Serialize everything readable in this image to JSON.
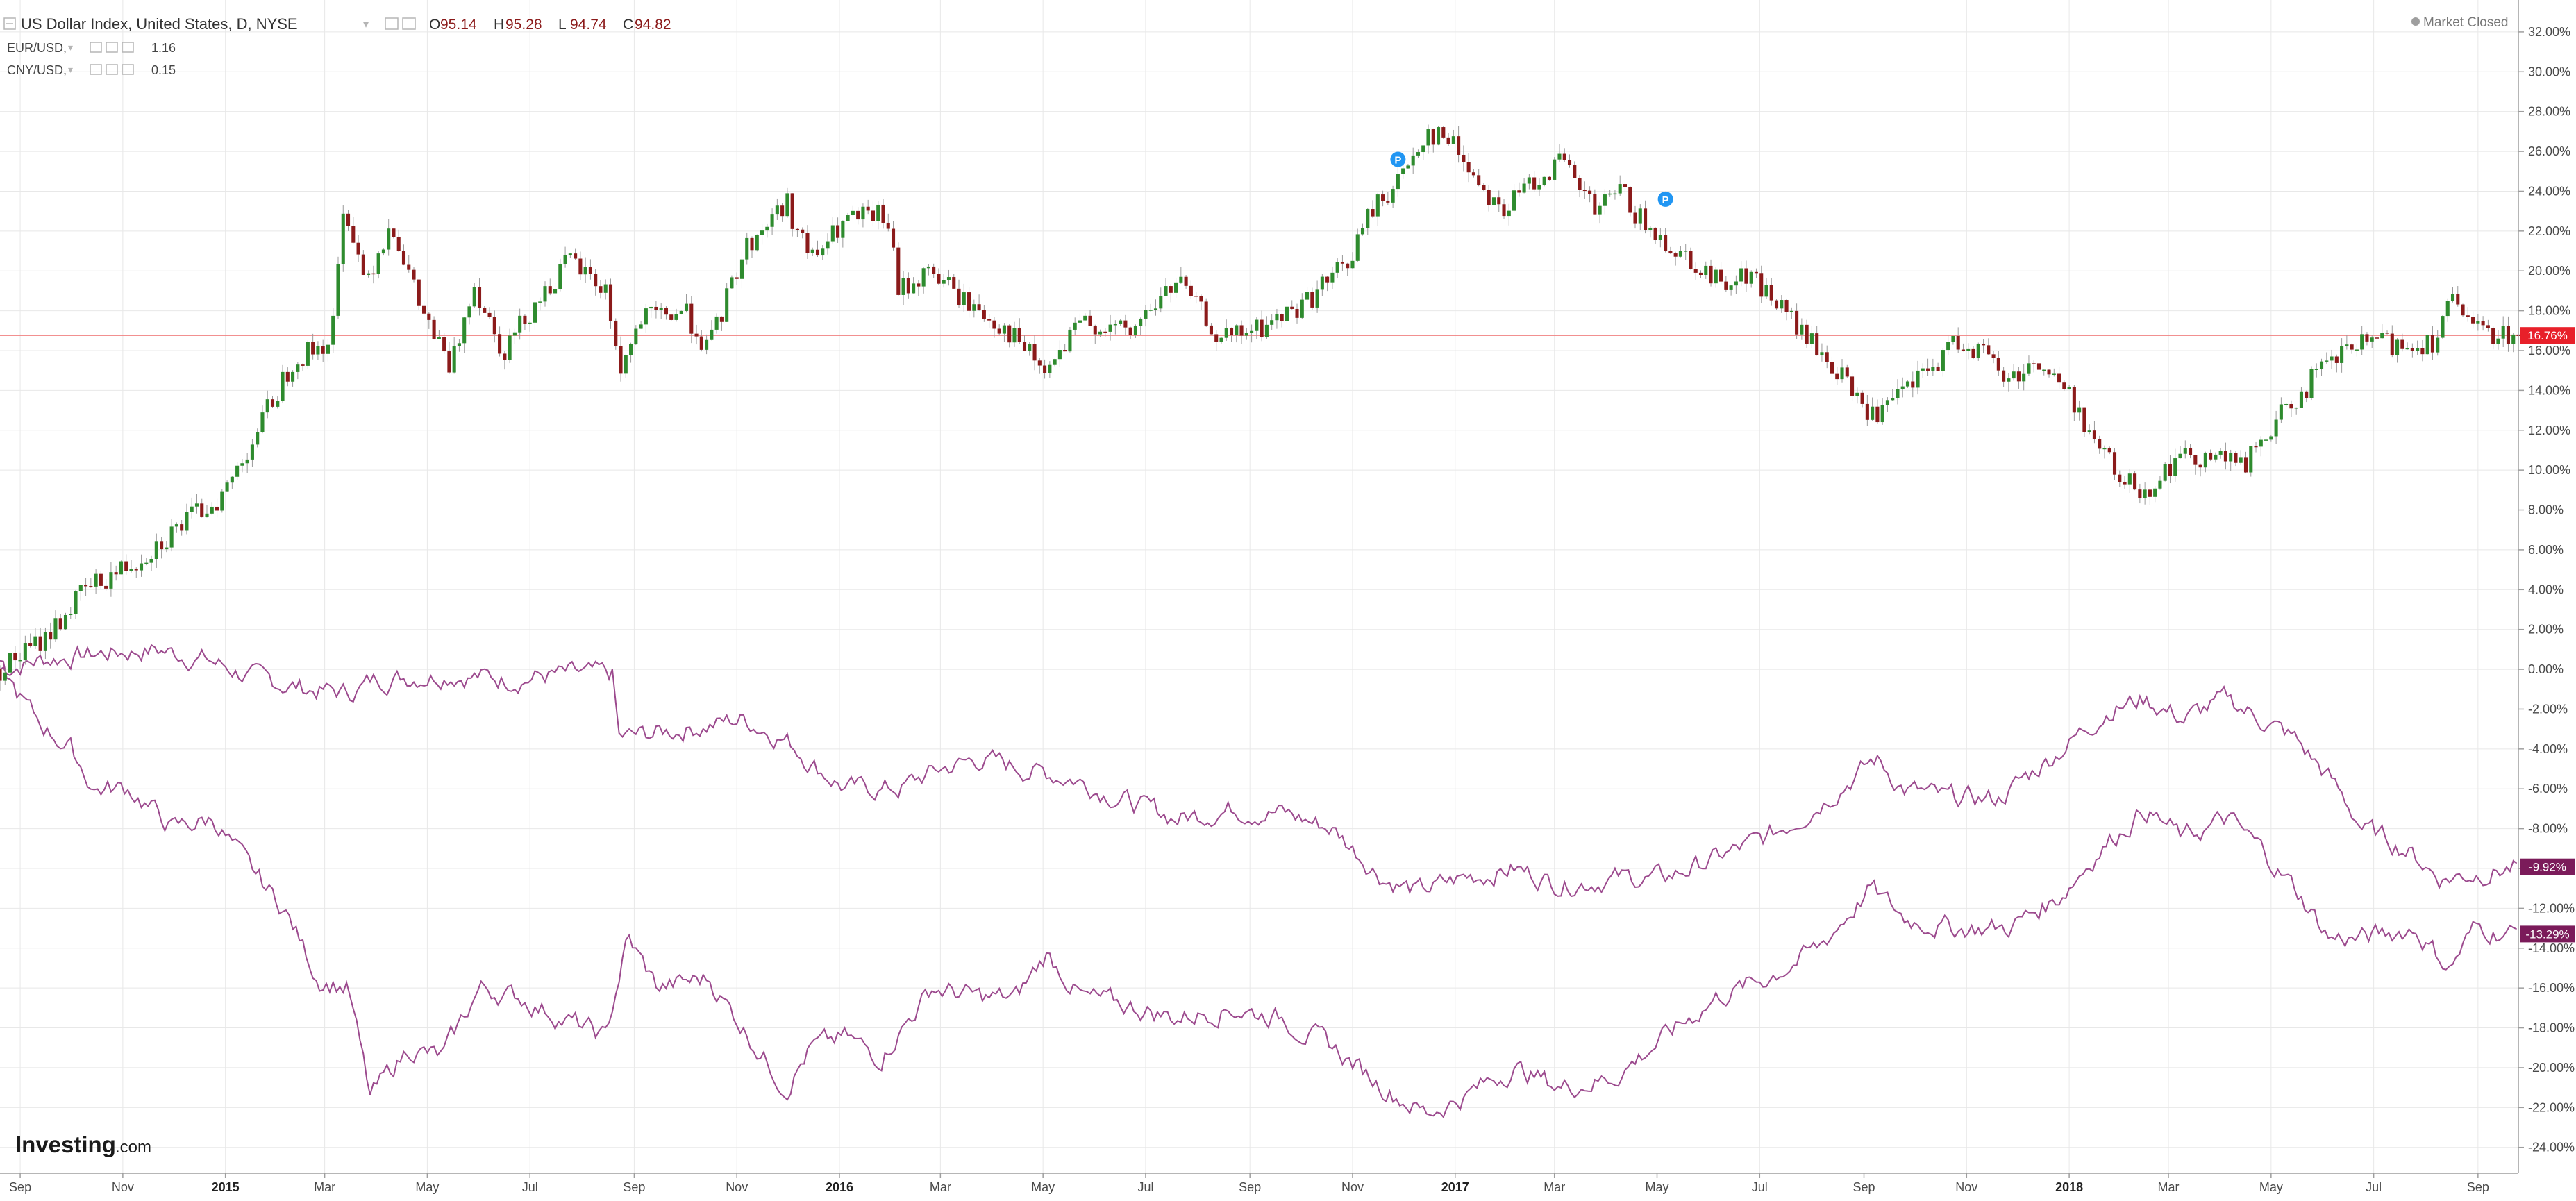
{
  "header": {
    "main_symbol": "US Dollar Index, United States, D, NYSE",
    "ohlc": [
      {
        "label": "O",
        "value": "95.14"
      },
      {
        "label": "H",
        "value": "95.28"
      },
      {
        "label": "L",
        "value": "94.74"
      },
      {
        "label": "C",
        "value": "94.82"
      }
    ],
    "compare": [
      {
        "symbol": "EUR/USD,",
        "value": "1.16"
      },
      {
        "symbol": "CNY/USD,",
        "value": "0.15"
      }
    ],
    "market_status": "Market Closed"
  },
  "branding": {
    "logo_bold": "Investing",
    "logo_suffix": ".com"
  },
  "colors": {
    "up_candle": "#2e8b2e",
    "down_candle": "#8b1a1a",
    "compare_line": "#9c4a8e",
    "price_line": "#f08080",
    "label_red": "#e8202a",
    "label_purple": "#7b1b5a",
    "grid": "#e8e8e8",
    "pin_blue": "#2196f3",
    "status_dot": "#9e9e9e"
  },
  "chart_data": {
    "type": "line",
    "percent_axis": {
      "ticks": [
        "32.00%",
        "30.00%",
        "28.00%",
        "26.00%",
        "24.00%",
        "22.00%",
        "20.00%",
        "18.00%",
        "16.00%",
        "14.00%",
        "12.00%",
        "10.00%",
        "8.00%",
        "6.00%",
        "4.00%",
        "2.00%",
        "0.00%",
        "-2.00%",
        "-4.00%",
        "-6.00%",
        "-8.00%",
        "-10.00%",
        "-12.00%",
        "-14.00%",
        "-16.00%",
        "-18.00%",
        "-20.00%",
        "-22.00%",
        "-24.00%"
      ],
      "range": [
        -25.3,
        33.6
      ]
    },
    "time_axis": {
      "labels": [
        "Sep",
        "Nov",
        "2015",
        "Mar",
        "May",
        "Jul",
        "Sep",
        "Nov",
        "2016",
        "Mar",
        "May",
        "Jul",
        "Sep",
        "Nov",
        "2017",
        "Mar",
        "May",
        "Jul",
        "Sep",
        "Nov",
        "2018",
        "Mar",
        "May",
        "Jul",
        "Sep"
      ],
      "bold_labels": [
        "2015",
        "2016",
        "2017",
        "2018"
      ],
      "range": [
        "2014-08-20",
        "2018-09-25"
      ]
    },
    "series": [
      {
        "key": "usd_index",
        "kind": "candlestick",
        "last_label": "16.76%",
        "last_value": 16.76,
        "points": [
          [
            "2014-08-20",
            0
          ],
          [
            "2014-09-15",
            1.5
          ],
          [
            "2014-10-10",
            4
          ],
          [
            "2014-11-10",
            5.5
          ],
          [
            "2014-12-05",
            7.2
          ],
          [
            "2014-12-31",
            8.8
          ],
          [
            "2015-01-20",
            12
          ],
          [
            "2015-02-10",
            15.5
          ],
          [
            "2015-03-05",
            16.5
          ],
          [
            "2015-03-13",
            23.5
          ],
          [
            "2015-03-25",
            19.5
          ],
          [
            "2015-04-10",
            22.5
          ],
          [
            "2015-04-25",
            18.5
          ],
          [
            "2015-05-15",
            15
          ],
          [
            "2015-05-28",
            19.5
          ],
          [
            "2015-06-15",
            16
          ],
          [
            "2015-07-05",
            18.5
          ],
          [
            "2015-07-25",
            20.5
          ],
          [
            "2015-08-15",
            19
          ],
          [
            "2015-08-24",
            15
          ],
          [
            "2015-09-05",
            17.5
          ],
          [
            "2015-10-01",
            18
          ],
          [
            "2015-10-15",
            16
          ],
          [
            "2015-11-05",
            21
          ],
          [
            "2015-11-30",
            23.5
          ],
          [
            "2015-12-15",
            20.5
          ],
          [
            "2016-01-05",
            22.5
          ],
          [
            "2016-01-29",
            22.8
          ],
          [
            "2016-02-05",
            19
          ],
          [
            "2016-02-25",
            20
          ],
          [
            "2016-03-15",
            18.5
          ],
          [
            "2016-04-10",
            17
          ],
          [
            "2016-05-03",
            14.8
          ],
          [
            "2016-05-25",
            17.5
          ],
          [
            "2016-06-23",
            16.8
          ],
          [
            "2016-06-27",
            17.5
          ],
          [
            "2016-07-20",
            19.5
          ],
          [
            "2016-08-15",
            16.5
          ],
          [
            "2016-09-10",
            17.2
          ],
          [
            "2016-10-05",
            18.5
          ],
          [
            "2016-10-30",
            20.5
          ],
          [
            "2016-11-12",
            23
          ],
          [
            "2016-11-28",
            24.5
          ],
          [
            "2016-12-15",
            27
          ],
          [
            "2016-12-30",
            26.5
          ],
          [
            "2017-01-15",
            24.5
          ],
          [
            "2017-01-30",
            23
          ],
          [
            "2017-02-15",
            24.5
          ],
          [
            "2017-03-05",
            25.5
          ],
          [
            "2017-03-25",
            23
          ],
          [
            "2017-04-10",
            24
          ],
          [
            "2017-04-25",
            22
          ],
          [
            "2017-05-15",
            21
          ],
          [
            "2017-06-05",
            19.5
          ],
          [
            "2017-06-25",
            19.8
          ],
          [
            "2017-07-10",
            18.5
          ],
          [
            "2017-07-30",
            16.5
          ],
          [
            "2017-08-15",
            15
          ],
          [
            "2017-09-08",
            12.5
          ],
          [
            "2017-09-25",
            14
          ],
          [
            "2017-10-10",
            15
          ],
          [
            "2017-10-26",
            16.5
          ],
          [
            "2017-11-10",
            16
          ],
          [
            "2017-11-25",
            14.5
          ],
          [
            "2017-12-12",
            15.5
          ],
          [
            "2017-12-30",
            14
          ],
          [
            "2018-01-20",
            11
          ],
          [
            "2018-02-01",
            9.5
          ],
          [
            "2018-02-16",
            9
          ],
          [
            "2018-03-05",
            10.5
          ],
          [
            "2018-03-25",
            10.8
          ],
          [
            "2018-04-15",
            10.2
          ],
          [
            "2018-05-05",
            12.5
          ],
          [
            "2018-05-25",
            14.5
          ],
          [
            "2018-06-15",
            16
          ],
          [
            "2018-07-01",
            16.5
          ],
          [
            "2018-07-20",
            16.2
          ],
          [
            "2018-08-05",
            16.5
          ],
          [
            "2018-08-15",
            18.5
          ],
          [
            "2018-08-30",
            17
          ],
          [
            "2018-09-25",
            16.76
          ]
        ]
      },
      {
        "key": "eur_usd",
        "kind": "line",
        "last_label": "-9.92%",
        "last_value": -9.92,
        "points": [
          [
            "2014-08-20",
            0
          ],
          [
            "2014-09-15",
            0.5
          ],
          [
            "2014-10-20",
            0.8
          ],
          [
            "2014-11-20",
            1
          ],
          [
            "2014-12-20",
            0.5
          ],
          [
            "2015-01-20",
            -0.5
          ],
          [
            "2015-02-20",
            -1
          ],
          [
            "2015-03-15",
            -1.2
          ],
          [
            "2015-04-01",
            -0.5
          ],
          [
            "2015-05-15",
            -0.2
          ],
          [
            "2015-06-15",
            -0.5
          ],
          [
            "2015-07-15",
            -0.3
          ],
          [
            "2015-08-20",
            -0.3
          ],
          [
            "2015-08-22",
            -3.5
          ],
          [
            "2015-09-15",
            -3.2
          ],
          [
            "2015-10-15",
            -2.8
          ],
          [
            "2015-11-05",
            -2.5
          ],
          [
            "2015-11-30",
            -3.5
          ],
          [
            "2015-12-20",
            -5
          ],
          [
            "2016-01-05",
            -6
          ],
          [
            "2016-02-05",
            -6
          ],
          [
            "2016-03-01",
            -5
          ],
          [
            "2016-03-25",
            -4.5
          ],
          [
            "2016-04-20",
            -5
          ],
          [
            "2016-05-20",
            -5.5
          ],
          [
            "2016-06-25",
            -6.8
          ],
          [
            "2016-07-20",
            -7.5
          ],
          [
            "2016-08-20",
            -7
          ],
          [
            "2016-09-20",
            -7.2
          ],
          [
            "2016-10-20",
            -8
          ],
          [
            "2016-11-20",
            -10.5
          ],
          [
            "2016-12-10",
            -11.2
          ],
          [
            "2017-01-05",
            -10.5
          ],
          [
            "2017-02-05",
            -10
          ],
          [
            "2017-03-05",
            -10.8
          ],
          [
            "2017-04-05",
            -10.5
          ],
          [
            "2017-05-05",
            -10.5
          ],
          [
            "2017-06-05",
            -9.5
          ],
          [
            "2017-07-05",
            -8.5
          ],
          [
            "2017-08-01",
            -7
          ],
          [
            "2017-09-01",
            -5
          ],
          [
            "2017-09-08",
            -4.5
          ],
          [
            "2017-09-25",
            -6
          ],
          [
            "2017-10-20",
            -6.5
          ],
          [
            "2017-11-20",
            -6.5
          ],
          [
            "2017-12-20",
            -4.5
          ],
          [
            "2018-01-25",
            -2
          ],
          [
            "2018-02-15",
            -1.5
          ],
          [
            "2018-03-10",
            -2.5
          ],
          [
            "2018-04-05",
            -1.5
          ],
          [
            "2018-04-25",
            -2.5
          ],
          [
            "2018-05-15",
            -3.5
          ],
          [
            "2018-06-05",
            -5.5
          ],
          [
            "2018-06-25",
            -8
          ],
          [
            "2018-07-20",
            -9
          ],
          [
            "2018-08-10",
            -10.5
          ],
          [
            "2018-09-25",
            -9.92
          ]
        ]
      },
      {
        "key": "cny_usd",
        "kind": "line",
        "last_label": "-13.29%",
        "last_value": -13.29,
        "points": [
          [
            "2014-08-20",
            0
          ],
          [
            "2014-09-10",
            -2.5
          ],
          [
            "2014-10-01",
            -4
          ],
          [
            "2014-10-15",
            -6
          ],
          [
            "2014-11-05",
            -6
          ],
          [
            "2014-12-01",
            -8
          ],
          [
            "2014-12-25",
            -7.5
          ],
          [
            "2015-01-15",
            -10
          ],
          [
            "2015-02-05",
            -12
          ],
          [
            "2015-02-25",
            -15.5
          ],
          [
            "2015-03-15",
            -16
          ],
          [
            "2015-03-28",
            -21.5
          ],
          [
            "2015-04-20",
            -19
          ],
          [
            "2015-05-10",
            -19.5
          ],
          [
            "2015-06-01",
            -16
          ],
          [
            "2015-06-25",
            -16.5
          ],
          [
            "2015-07-20",
            -17.5
          ],
          [
            "2015-08-15",
            -18.5
          ],
          [
            "2015-08-28",
            -13.5
          ],
          [
            "2015-09-15",
            -16
          ],
          [
            "2015-10-15",
            -15.5
          ],
          [
            "2015-11-05",
            -18
          ],
          [
            "2015-11-30",
            -21
          ],
          [
            "2015-12-15",
            -19
          ],
          [
            "2016-01-05",
            -18.5
          ],
          [
            "2016-01-25",
            -19.5
          ],
          [
            "2016-02-25",
            -16
          ],
          [
            "2016-03-25",
            -16.5
          ],
          [
            "2016-04-15",
            -16.5
          ],
          [
            "2016-05-03",
            -14.3
          ],
          [
            "2016-05-25",
            -16.5
          ],
          [
            "2016-06-25",
            -17
          ],
          [
            "2016-07-20",
            -17.5
          ],
          [
            "2016-08-20",
            -17
          ],
          [
            "2016-09-20",
            -17.5
          ],
          [
            "2016-10-20",
            -19
          ],
          [
            "2016-11-20",
            -21
          ],
          [
            "2016-12-15",
            -22.3
          ],
          [
            "2017-01-05",
            -21.5
          ],
          [
            "2017-02-05",
            -20
          ],
          [
            "2017-03-05",
            -21
          ],
          [
            "2017-04-05",
            -20.5
          ],
          [
            "2017-05-05",
            -18.5
          ],
          [
            "2017-06-05",
            -16.5
          ],
          [
            "2017-07-05",
            -15.5
          ],
          [
            "2017-08-05",
            -14
          ],
          [
            "2017-09-05",
            -11
          ],
          [
            "2017-09-25",
            -12.5
          ],
          [
            "2017-10-25",
            -13
          ],
          [
            "2017-11-25",
            -13
          ],
          [
            "2017-12-25",
            -11.5
          ],
          [
            "2018-01-20",
            -9
          ],
          [
            "2018-02-15",
            -7
          ],
          [
            "2018-03-10",
            -8.5
          ],
          [
            "2018-04-05",
            -7.5
          ],
          [
            "2018-04-25",
            -9
          ],
          [
            "2018-05-15",
            -11
          ],
          [
            "2018-06-05",
            -13.5
          ],
          [
            "2018-06-25",
            -13.5
          ],
          [
            "2018-07-25",
            -13
          ],
          [
            "2018-08-15",
            -15
          ],
          [
            "2018-08-30",
            -13
          ],
          [
            "2018-09-25",
            -13.29
          ]
        ]
      }
    ],
    "current_price_line": 16.76,
    "markers": [
      {
        "label": "P",
        "date": "2016-11-28",
        "value": 25.6
      },
      {
        "label": "P",
        "date": "2017-05-06",
        "value": 23.6
      }
    ],
    "grid": true,
    "legend_position": "top-left"
  }
}
